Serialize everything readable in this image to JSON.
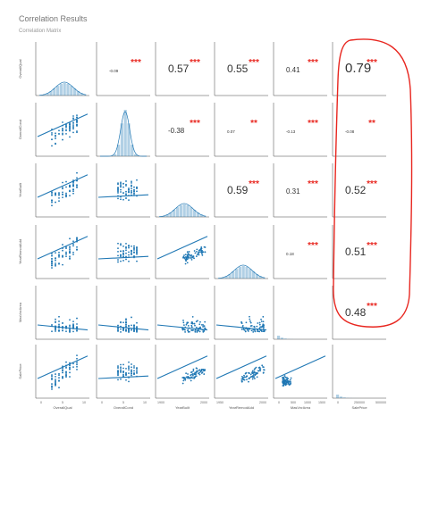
{
  "page": {
    "title": "Correlation Results",
    "subtitle": "Correlation Matrix"
  },
  "chart_data": {
    "type": "pairplot",
    "variables": [
      "OverallQual",
      "OverallCond",
      "YearBuilt",
      "YearRemodAdd",
      "MasVnrArea",
      "SalePrice"
    ],
    "correlations": [
      {
        "row": "OverallQual",
        "col": "OverallCond",
        "r": "-0.09",
        "stars": "***"
      },
      {
        "row": "OverallQual",
        "col": "YearBuilt",
        "r": "0.57",
        "stars": "***"
      },
      {
        "row": "OverallQual",
        "col": "YearRemodAdd",
        "r": "0.55",
        "stars": "***"
      },
      {
        "row": "OverallQual",
        "col": "MasVnrArea",
        "r": "0.41",
        "stars": "***"
      },
      {
        "row": "OverallQual",
        "col": "SalePrice",
        "r": "0.79",
        "stars": "***"
      },
      {
        "row": "OverallCond",
        "col": "YearBuilt",
        "r": "-0.38",
        "stars": "***"
      },
      {
        "row": "OverallCond",
        "col": "YearRemodAdd",
        "r": "0.07",
        "stars": "**"
      },
      {
        "row": "OverallCond",
        "col": "MasVnrArea",
        "r": "-0.13",
        "stars": "***"
      },
      {
        "row": "OverallCond",
        "col": "SalePrice",
        "r": "-0.08",
        "stars": "**"
      },
      {
        "row": "YearBuilt",
        "col": "YearRemodAdd",
        "r": "0.59",
        "stars": "***"
      },
      {
        "row": "YearBuilt",
        "col": "MasVnrArea",
        "r": "0.31",
        "stars": "***"
      },
      {
        "row": "YearBuilt",
        "col": "SalePrice",
        "r": "0.52",
        "stars": "***"
      },
      {
        "row": "YearRemodAdd",
        "col": "MasVnrArea",
        "r": "0.18",
        "stars": "***"
      },
      {
        "row": "YearRemodAdd",
        "col": "SalePrice",
        "r": "0.51",
        "stars": "***"
      },
      {
        "row": "MasVnrArea",
        "col": "SalePrice",
        "r": "0.48",
        "stars": "***"
      }
    ],
    "x_tick_labels": {
      "OverallQual": [
        "0",
        "5",
        "10"
      ],
      "OverallCond": [
        "0",
        "5",
        "10"
      ],
      "YearBuilt": [
        "1900",
        "2000"
      ],
      "YearRemodAdd": [
        "1950",
        "2000"
      ],
      "MasVnrArea": [
        "0",
        "500",
        "1000",
        "1500"
      ],
      "SalePrice": [
        "0",
        "250000",
        "500000"
      ]
    },
    "point_color": "#1f77b4",
    "star_color": "#e8261f",
    "highlight_color": "#e8261f",
    "highlight": "SalePrice column"
  }
}
